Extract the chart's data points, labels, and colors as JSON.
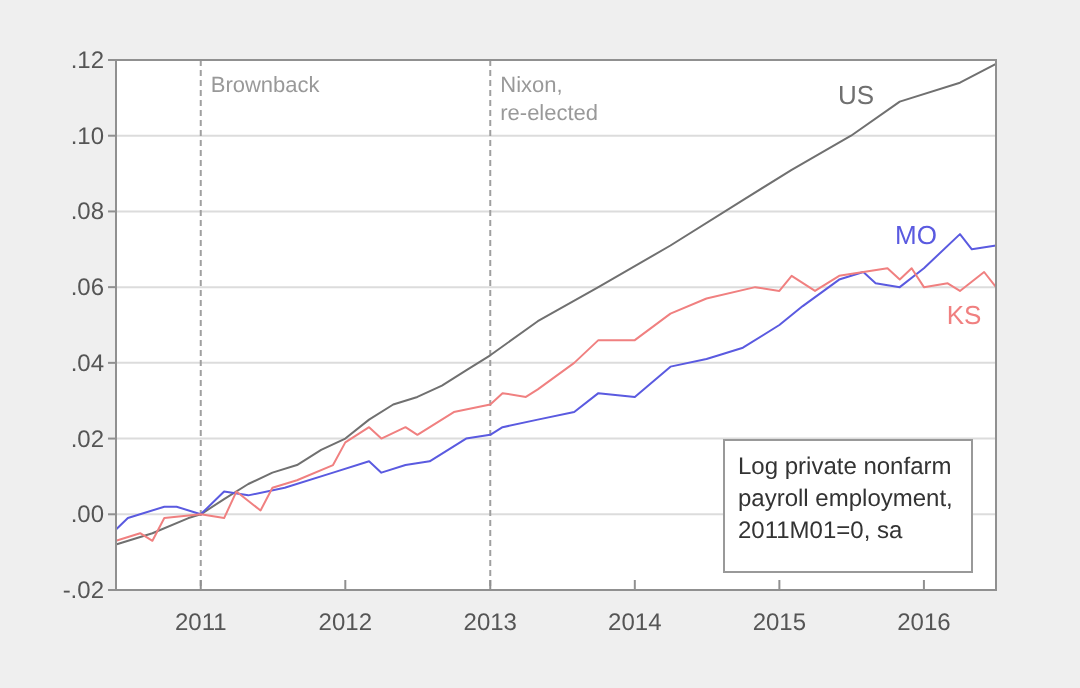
{
  "chart_data": {
    "type": "line",
    "xlim": [
      "2010-06",
      "2016-07"
    ],
    "xticks": [
      "2011",
      "2012",
      "2013",
      "2014",
      "2015",
      "2016"
    ],
    "ylim": [
      -0.02,
      0.12
    ],
    "yticks": [
      {
        "value": -0.02,
        "label": "-.02"
      },
      {
        "value": 0,
        "label": ".00"
      },
      {
        "value": 0.02,
        "label": ".02"
      },
      {
        "value": 0.04,
        "label": ".04"
      },
      {
        "value": 0.06,
        "label": ".06"
      },
      {
        "value": 0.08,
        "label": ".08"
      },
      {
        "value": 0.1,
        "label": ".10"
      },
      {
        "value": 0.12,
        "label": ".12"
      }
    ],
    "grid": "y",
    "ref_lines": [
      {
        "axis": "x",
        "value": "2011-01",
        "label": "Brownback",
        "color": "#a0a0a0",
        "line_style": "dashed"
      },
      {
        "axis": "x",
        "value": "2013-01",
        "label": "Nixon,\nre-elected",
        "color": "#a0a0a0",
        "line_style": "dashed"
      }
    ],
    "annotations": [
      "Log private nonfarm\npayroll employment,\n2011M01=0, sa"
    ],
    "series": [
      {
        "name": "US",
        "color": "#707070",
        "x": [
          "2010-06",
          "2010-09",
          "2010-12",
          "2011-01",
          "2011-03",
          "2011-05",
          "2011-07",
          "2011-09",
          "2011-11",
          "2012-01",
          "2012-03",
          "2012-05",
          "2012-07",
          "2012-09",
          "2012-11",
          "2013-01",
          "2013-05",
          "2013-10",
          "2014-04",
          "2014-10",
          "2015-02",
          "2015-07",
          "2015-11",
          "2016-04",
          "2016-07"
        ],
        "values": [
          -0.008,
          -0.005,
          -0.001,
          0,
          0.004,
          0.008,
          0.011,
          0.013,
          0.017,
          0.02,
          0.025,
          0.029,
          0.031,
          0.034,
          0.038,
          0.042,
          0.051,
          0.06,
          0.071,
          0.083,
          0.091,
          0.1,
          0.109,
          0.114,
          0.119
        ]
      },
      {
        "name": "MO",
        "color": "#5a5ae0",
        "x": [
          "2010-06",
          "2010-07",
          "2010-10",
          "2010-11",
          "2011-01",
          "2011-03",
          "2011-05",
          "2011-08",
          "2011-12",
          "2012-03",
          "2012-04",
          "2012-06",
          "2012-08",
          "2012-11",
          "2013-01",
          "2013-02",
          "2013-05",
          "2013-08",
          "2013-10",
          "2014-01",
          "2014-04",
          "2014-07",
          "2014-08",
          "2014-10",
          "2015-01",
          "2015-03",
          "2015-06",
          "2015-08",
          "2015-09",
          "2015-11",
          "2016-01",
          "2016-04",
          "2016-05",
          "2016-07"
        ],
        "values": [
          -0.004,
          -0.001,
          0.002,
          0.002,
          0,
          0.006,
          0.005,
          0.007,
          0.011,
          0.014,
          0.011,
          0.013,
          0.014,
          0.02,
          0.021,
          0.023,
          0.025,
          0.027,
          0.032,
          0.031,
          0.039,
          0.041,
          0.042,
          0.044,
          0.05,
          0.055,
          0.062,
          0.064,
          0.061,
          0.06,
          0.065,
          0.074,
          0.07,
          0.071
        ]
      },
      {
        "name": "KS",
        "color": "#f08080",
        "x": [
          "2010-06",
          "2010-08",
          "2010-09",
          "2010-10",
          "2011-01",
          "2011-03",
          "2011-04",
          "2011-06",
          "2011-07",
          "2011-09",
          "2011-12",
          "2012-01",
          "2012-03",
          "2012-04",
          "2012-06",
          "2012-07",
          "2012-10",
          "2013-01",
          "2013-02",
          "2013-04",
          "2013-05",
          "2013-08",
          "2013-10",
          "2014-01",
          "2014-04",
          "2014-07",
          "2014-11",
          "2015-01",
          "2015-02",
          "2015-04",
          "2015-06",
          "2015-10",
          "2015-11",
          "2015-12",
          "2016-01",
          "2016-03",
          "2016-04",
          "2016-06",
          "2016-07"
        ],
        "values": [
          -0.007,
          -0.005,
          -0.007,
          -0.001,
          0,
          -0.001,
          0.006,
          0.001,
          0.007,
          0.009,
          0.013,
          0.019,
          0.023,
          0.02,
          0.023,
          0.021,
          0.027,
          0.029,
          0.032,
          0.031,
          0.033,
          0.04,
          0.046,
          0.046,
          0.053,
          0.057,
          0.06,
          0.059,
          0.063,
          0.059,
          0.063,
          0.065,
          0.062,
          0.065,
          0.06,
          0.061,
          0.059,
          0.064,
          0.06
        ]
      }
    ]
  }
}
